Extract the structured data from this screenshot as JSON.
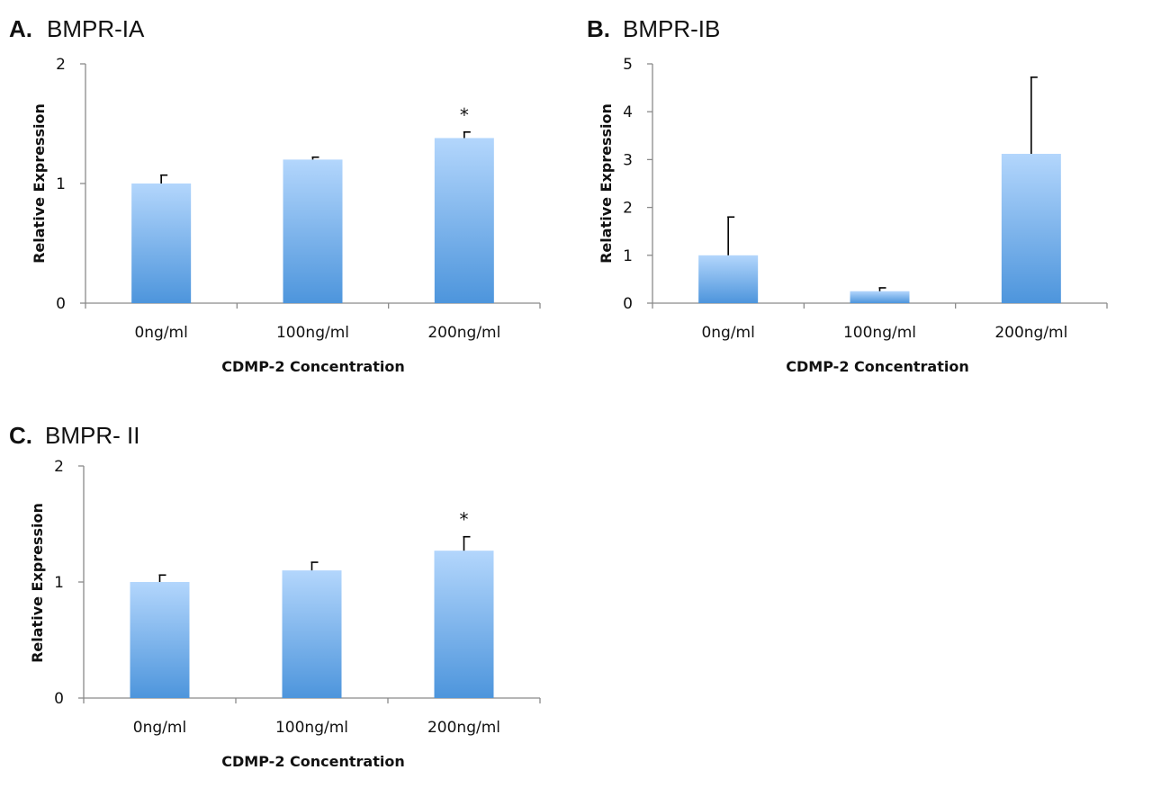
{
  "colors": {
    "bar_top": "#b3d6fc",
    "bar_bottom": "#4d95dc",
    "axis": "#8a8a8a",
    "text": "#111111"
  },
  "chart_data": [
    {
      "type": "bar",
      "panel_letter": "A.",
      "title": "BMPR-IA",
      "xlabel": "CDMP-2 Concentration",
      "ylabel": "Relative Expression",
      "categories": [
        "0ng/ml",
        "100ng/ml",
        "200ng/ml"
      ],
      "values": [
        1.0,
        1.2,
        1.38
      ],
      "error_bars": [
        0.07,
        0.02,
        0.05
      ],
      "annotations": [
        "",
        "",
        "*"
      ],
      "ylim": [
        0,
        2
      ],
      "yticks": [
        0,
        1,
        2
      ],
      "grid": false,
      "legend": "none"
    },
    {
      "type": "bar",
      "panel_letter": "B.",
      "title": "BMPR-IB",
      "xlabel": "CDMP-2 Concentration",
      "ylabel": "Relative Expression",
      "categories": [
        "0ng/ml",
        "100ng/ml",
        "200ng/ml"
      ],
      "values": [
        1.0,
        0.25,
        3.12
      ],
      "error_bars": [
        0.8,
        0.07,
        1.6
      ],
      "annotations": [
        "",
        "",
        ""
      ],
      "ylim": [
        0,
        5
      ],
      "yticks": [
        0,
        1,
        2,
        3,
        4,
        5
      ],
      "grid": false,
      "legend": "none"
    },
    {
      "type": "bar",
      "panel_letter": "C.",
      "title": "BMPR- II",
      "xlabel": "CDMP-2 Concentration",
      "ylabel": "Relative Expression",
      "categories": [
        "0ng/ml",
        "100ng/ml",
        "200ng/ml"
      ],
      "values": [
        1.0,
        1.1,
        1.27
      ],
      "error_bars": [
        0.06,
        0.07,
        0.12
      ],
      "annotations": [
        "",
        "",
        "*"
      ],
      "ylim": [
        0,
        2
      ],
      "yticks": [
        0,
        1,
        2
      ],
      "grid": false,
      "legend": "none"
    }
  ]
}
